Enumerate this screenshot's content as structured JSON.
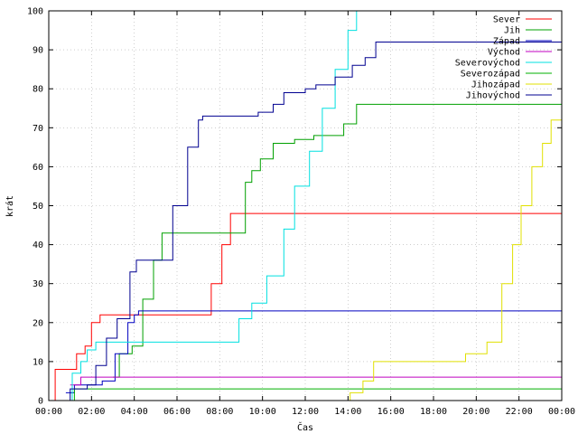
{
  "chart_data": {
    "type": "line",
    "xlabel": "Čas",
    "ylabel": "krát",
    "xlim": [
      0,
      24
    ],
    "ylim": [
      0,
      100
    ],
    "x_ticks": [
      "00:00",
      "02:00",
      "04:00",
      "06:00",
      "08:00",
      "10:00",
      "12:00",
      "14:00",
      "16:00",
      "18:00",
      "20:00",
      "22:00",
      "00:00"
    ],
    "y_ticks": [
      0,
      10,
      20,
      30,
      40,
      50,
      60,
      70,
      80,
      90,
      100
    ],
    "grid": true,
    "legend_position": "top-right",
    "series": [
      {
        "name": "Sever",
        "color": "#ff0000",
        "points": [
          [
            0,
            0
          ],
          [
            0.3,
            8
          ],
          [
            1.0,
            8
          ],
          [
            1.3,
            12
          ],
          [
            1.7,
            14
          ],
          [
            2.0,
            20
          ],
          [
            2.4,
            22
          ],
          [
            7.1,
            22
          ],
          [
            7.6,
            30
          ],
          [
            8.1,
            40
          ],
          [
            8.5,
            48
          ],
          [
            24,
            48
          ]
        ]
      },
      {
        "name": "Jih",
        "color": "#00a000",
        "points": [
          [
            3.0,
            6
          ],
          [
            3.3,
            12
          ],
          [
            3.9,
            14
          ],
          [
            4.4,
            26
          ],
          [
            4.9,
            36
          ],
          [
            5.3,
            43
          ],
          [
            8.6,
            43
          ],
          [
            9.2,
            56
          ],
          [
            9.5,
            59
          ],
          [
            9.9,
            62
          ],
          [
            10.5,
            66
          ],
          [
            11.5,
            67
          ],
          [
            12.4,
            68
          ],
          [
            13.8,
            71
          ],
          [
            14.4,
            76
          ],
          [
            24,
            76
          ]
        ]
      },
      {
        "name": "Západ",
        "color": "#0000c0",
        "points": [
          [
            0.8,
            2
          ],
          [
            1.2,
            4
          ],
          [
            2.5,
            5
          ],
          [
            3.1,
            12
          ],
          [
            3.7,
            20
          ],
          [
            4.0,
            22
          ],
          [
            4.2,
            23
          ],
          [
            24,
            23
          ]
        ]
      },
      {
        "name": "Východ",
        "color": "#c000c0",
        "points": [
          [
            1.0,
            4
          ],
          [
            1.5,
            6
          ],
          [
            24,
            6
          ]
        ]
      },
      {
        "name": "Severovýchod",
        "color": "#00e0e0",
        "points": [
          [
            0.7,
            0
          ],
          [
            1.1,
            7
          ],
          [
            1.5,
            10
          ],
          [
            1.8,
            13
          ],
          [
            2.2,
            15
          ],
          [
            8.4,
            15
          ],
          [
            8.9,
            21
          ],
          [
            9.5,
            25
          ],
          [
            10.2,
            32
          ],
          [
            11.0,
            44
          ],
          [
            11.5,
            55
          ],
          [
            12.2,
            64
          ],
          [
            12.8,
            75
          ],
          [
            13.4,
            85
          ],
          [
            14.0,
            95
          ],
          [
            14.4,
            100
          ]
        ]
      },
      {
        "name": "Severozápad",
        "color": "#00b000",
        "points": [
          [
            1.1,
            0
          ],
          [
            1.2,
            3
          ],
          [
            24,
            3
          ]
        ]
      },
      {
        "name": "Jihozápad",
        "color": "#e0e000",
        "points": [
          [
            14.0,
            0
          ],
          [
            14.1,
            2
          ],
          [
            14.7,
            5
          ],
          [
            15.2,
            10
          ],
          [
            18.5,
            10
          ],
          [
            19.5,
            12
          ],
          [
            20.5,
            15
          ],
          [
            21.2,
            30
          ],
          [
            21.7,
            40
          ],
          [
            22.1,
            50
          ],
          [
            22.6,
            60
          ],
          [
            23.1,
            66
          ],
          [
            23.5,
            72
          ],
          [
            24,
            76
          ]
        ]
      },
      {
        "name": "Jihovýchod",
        "color": "#000090",
        "points": [
          [
            0.5,
            0
          ],
          [
            1.0,
            3
          ],
          [
            1.8,
            4
          ],
          [
            2.2,
            9
          ],
          [
            2.7,
            16
          ],
          [
            3.2,
            21
          ],
          [
            3.8,
            33
          ],
          [
            4.1,
            36
          ],
          [
            5.3,
            36
          ],
          [
            5.8,
            50
          ],
          [
            6.5,
            65
          ],
          [
            7.0,
            72
          ],
          [
            7.2,
            73
          ],
          [
            9.5,
            73
          ],
          [
            9.8,
            74
          ],
          [
            10.5,
            76
          ],
          [
            11.0,
            79
          ],
          [
            12.0,
            80
          ],
          [
            12.5,
            81
          ],
          [
            13.4,
            83
          ],
          [
            14.2,
            86
          ],
          [
            14.8,
            88
          ],
          [
            15.3,
            92
          ],
          [
            24,
            92
          ]
        ]
      }
    ]
  }
}
